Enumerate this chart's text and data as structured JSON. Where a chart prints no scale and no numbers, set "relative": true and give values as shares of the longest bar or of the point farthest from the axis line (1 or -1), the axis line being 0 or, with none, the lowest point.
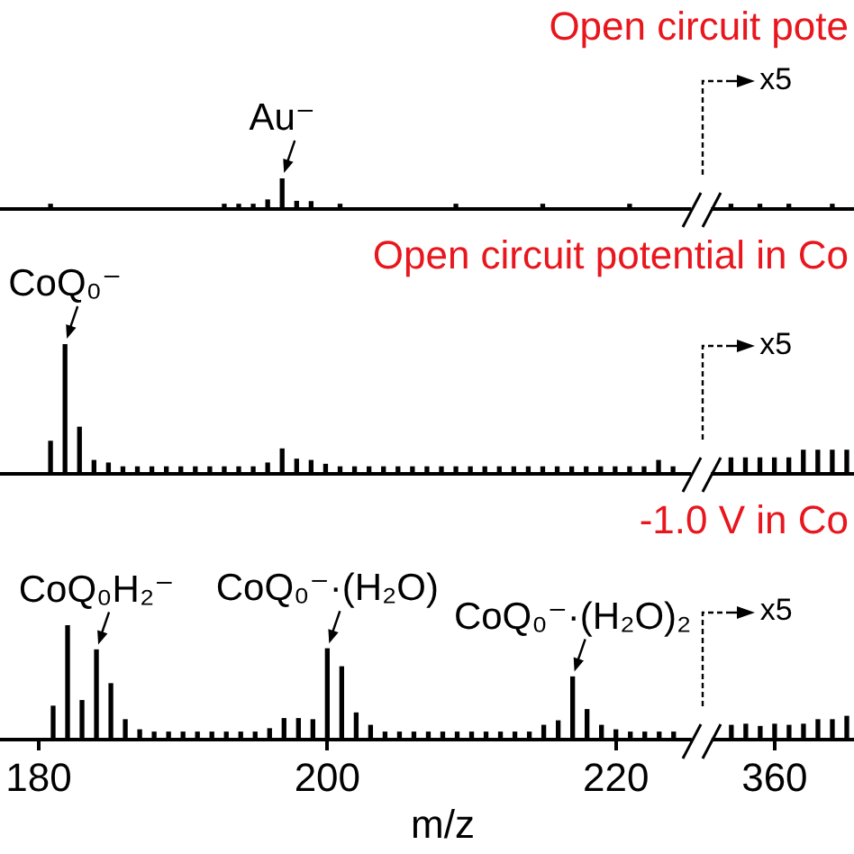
{
  "chart_data": [
    {
      "type": "bar",
      "title": "Open circuit pote",
      "relative": true,
      "color": "#000000",
      "tick_labels": false,
      "categories": [
        "180",
        null,
        null,
        null,
        null,
        null,
        null,
        null,
        null,
        null,
        null,
        null,
        null,
        null,
        null,
        null,
        null,
        null,
        null,
        null,
        "200",
        null,
        null,
        null,
        null,
        null,
        null,
        null,
        null,
        null,
        null,
        null,
        null,
        null,
        null,
        null,
        null,
        null,
        null,
        null,
        "220",
        null,
        null,
        null,
        null,
        null,
        null,
        null,
        null,
        null,
        null,
        "360",
        null,
        null,
        null,
        null,
        null
      ],
      "values": [
        null,
        0.1,
        null,
        null,
        null,
        null,
        null,
        null,
        null,
        null,
        null,
        null,
        null,
        0.1,
        0.1,
        0.1,
        0.25,
        1,
        0.2,
        0.19,
        null,
        0.1,
        null,
        null,
        null,
        null,
        null,
        null,
        null,
        0.1,
        null,
        null,
        null,
        null,
        null,
        0.1,
        null,
        null,
        null,
        null,
        null,
        0.1,
        null,
        null,
        null,
        null,
        null,
        null,
        0.1,
        null,
        0.1,
        null,
        0.1,
        null,
        null,
        0.1,
        null
      ],
      "annotations": [
        {
          "text": "Au⁻",
          "y": 1
        },
        "x5"
      ]
    },
    {
      "type": "bar",
      "title": "Open circuit potential in Co",
      "relative": true,
      "color": "#000000",
      "tick_labels": false,
      "categories": [
        "180",
        null,
        null,
        null,
        null,
        null,
        null,
        null,
        null,
        null,
        null,
        null,
        null,
        null,
        null,
        null,
        null,
        null,
        null,
        null,
        "200",
        null,
        null,
        null,
        null,
        null,
        null,
        null,
        null,
        null,
        null,
        null,
        null,
        null,
        null,
        null,
        null,
        null,
        null,
        null,
        "220",
        null,
        null,
        null,
        null,
        null,
        null,
        null,
        null,
        null,
        null,
        "360",
        null,
        null,
        null,
        null,
        null
      ],
      "values": [
        null,
        0.24,
        1,
        0.35,
        0.09,
        0.07,
        0.04,
        0.04,
        0.04,
        0.04,
        0.04,
        0.04,
        0.04,
        0.04,
        0.04,
        0.04,
        0.07,
        0.18,
        0.1,
        0.09,
        0.06,
        0.04,
        0.04,
        0.04,
        0.04,
        0.04,
        0.04,
        0.04,
        0.04,
        0.04,
        0.04,
        0.04,
        0.04,
        0.04,
        0.04,
        0.04,
        0.04,
        0.04,
        0.04,
        0.04,
        0.04,
        0.04,
        0.04,
        0.09,
        0.04,
        null,
        null,
        null,
        0.11,
        0.11,
        0.11,
        0.11,
        0.11,
        0.17,
        0.17,
        0.17,
        0.17
      ],
      "annotations": [
        {
          "text": "CoQ₀⁻",
          "y": 1
        },
        "x5"
      ]
    },
    {
      "type": "bar",
      "title": "-1.0 V in Co",
      "xlabel": "m/z",
      "relative": true,
      "color": "#000000",
      "categories": [
        "180",
        null,
        null,
        null,
        null,
        null,
        null,
        null,
        null,
        null,
        null,
        null,
        null,
        null,
        null,
        null,
        null,
        null,
        null,
        null,
        "200",
        null,
        null,
        null,
        null,
        null,
        null,
        null,
        null,
        null,
        null,
        null,
        null,
        null,
        null,
        null,
        null,
        null,
        null,
        null,
        "220",
        null,
        null,
        null,
        null,
        null,
        null,
        null,
        null,
        null,
        null,
        "360",
        null,
        null,
        null,
        null,
        null
      ],
      "values": [
        null,
        0.28,
        1,
        0.33,
        0.78,
        0.48,
        0.16,
        0.07,
        0.05,
        0.05,
        0.05,
        0.05,
        0.05,
        0.05,
        0.05,
        0.05,
        0.08,
        0.17,
        0.17,
        0.16,
        0.79,
        0.63,
        0.22,
        0.11,
        0.05,
        0.05,
        0.05,
        0.05,
        0.05,
        0.05,
        0.05,
        0.05,
        0.05,
        0.05,
        0.05,
        0.11,
        0.15,
        0.54,
        0.25,
        0.11,
        0.07,
        0.05,
        0.05,
        0.05,
        0.05,
        null,
        null,
        null,
        0.11,
        0.12,
        0.1,
        0.12,
        0.11,
        0.12,
        0.16,
        0.16,
        0.19
      ],
      "annotations": [
        {
          "text": "CoQ₀H₂⁻",
          "y": 0.78
        },
        {
          "text": "CoQ₀⁻·(H₂O)",
          "y": 0.79
        },
        {
          "text": "CoQ₀⁻·(H₂O)₂",
          "y": 0.54
        },
        "x5"
      ]
    }
  ]
}
